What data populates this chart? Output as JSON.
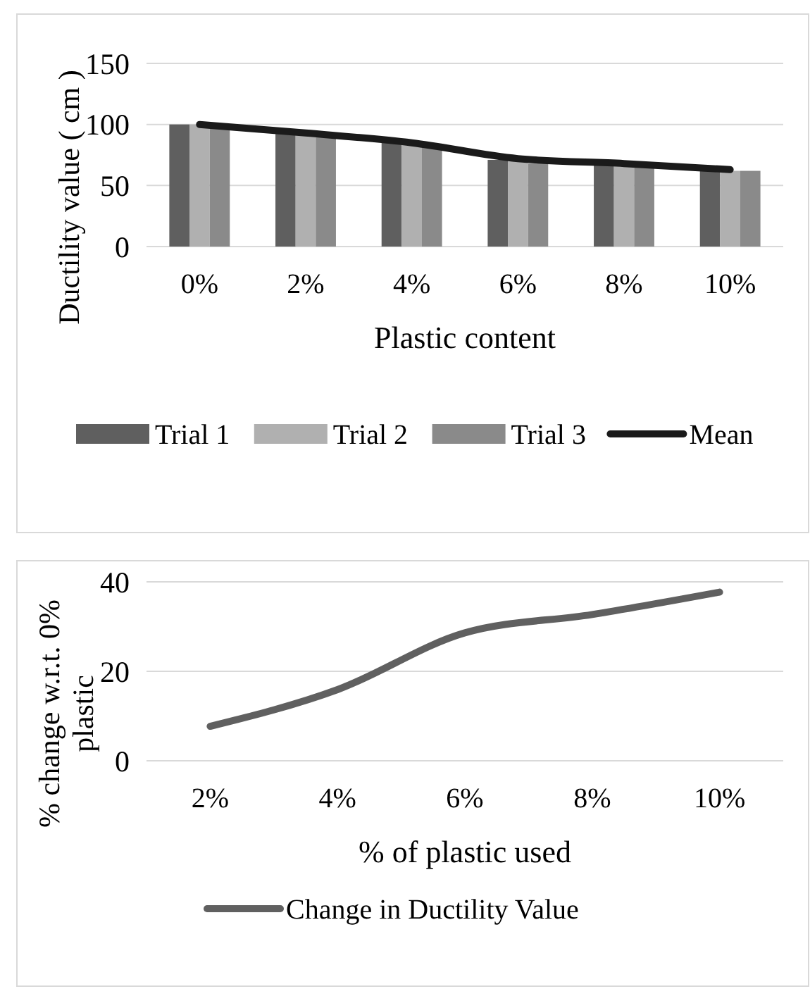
{
  "chart_data": [
    {
      "type": "bar",
      "xlabel": "Plastic content",
      "ylabel": "Ductility value ( cm )",
      "categories": [
        "0%",
        "2%",
        "4%",
        "6%",
        "8%",
        "10%"
      ],
      "ylim": [
        0,
        150
      ],
      "yticks": [
        0,
        50,
        100,
        150
      ],
      "grid": "y",
      "legend": "bottom",
      "series": [
        {
          "name": "Trial 1",
          "color": "#5f5f5f",
          "values": [
            100,
            94,
            87,
            71,
            67,
            63
          ]
        },
        {
          "name": "Trial 2",
          "color": "#b0b0b0",
          "values": [
            100,
            92,
            85,
            70,
            66,
            62
          ]
        },
        {
          "name": "Trial 3",
          "color": "#8a8a8a",
          "values": [
            98,
            90,
            82,
            68,
            65,
            62
          ]
        },
        {
          "name": "Mean",
          "type": "line",
          "color": "#1a1a1a",
          "values": [
            100,
            93,
            85,
            72,
            68,
            63
          ]
        }
      ]
    },
    {
      "type": "line",
      "xlabel": "% of plastic used",
      "ylabel": "% change w.r.t. 0% plastic",
      "categories": [
        "2%",
        "4%",
        "6%",
        "8%",
        "10%"
      ],
      "ylim": [
        0,
        40
      ],
      "yticks": [
        0,
        20,
        40
      ],
      "grid": "y",
      "legend": "bottom",
      "series": [
        {
          "name": "Change in Ductility Value",
          "color": "#606060",
          "values": [
            7.7,
            15.9,
            28.6,
            32.7,
            37.7
          ]
        }
      ]
    }
  ]
}
